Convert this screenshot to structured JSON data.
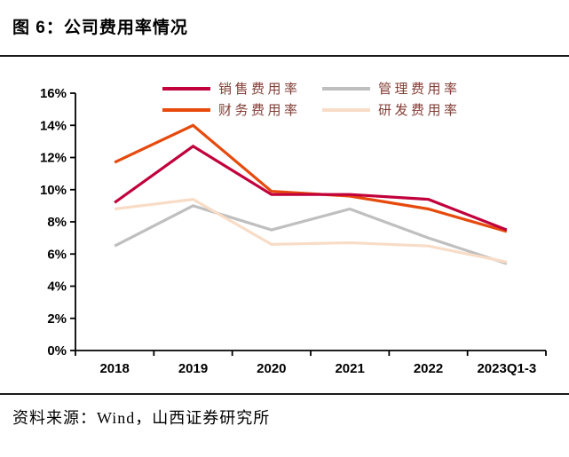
{
  "header": {
    "title": "图 6：公司费用率情况"
  },
  "footer": {
    "source": "资料来源：Wind，山西证券研究所"
  },
  "chart_data": {
    "type": "line",
    "title": "公司费用率情况",
    "categories": [
      "2018",
      "2019",
      "2020",
      "2021",
      "2022",
      "2023Q1-3"
    ],
    "series": [
      {
        "id": "sales-expense-ratio",
        "name": "销售费用率",
        "color": "#C1003C",
        "values": [
          9.2,
          12.7,
          9.7,
          9.7,
          9.4,
          7.5
        ]
      },
      {
        "id": "management-expense-ratio",
        "name": "管理费用率",
        "color": "#BFBFBF",
        "values": [
          6.5,
          9.0,
          7.5,
          8.8,
          7.0,
          5.4
        ]
      },
      {
        "id": "finance-expense-ratio",
        "name": "财务费用率",
        "color": "#E64A0D",
        "values": [
          11.7,
          14.0,
          9.9,
          9.6,
          8.8,
          7.4
        ]
      },
      {
        "id": "rnd-expense-ratio",
        "name": "研发费用率",
        "color": "#F8DCC6",
        "values": [
          8.8,
          9.4,
          6.6,
          6.7,
          6.5,
          5.5
        ]
      }
    ],
    "xlabel": "",
    "ylabel": "",
    "ylim": [
      0,
      16
    ],
    "ytick_step": 2,
    "ytick_format": "percent",
    "grid": false,
    "legend_position": "top",
    "accent_colors": {
      "legend_text": "#833D35",
      "axis": "#000000",
      "rule": "#1a1a1a"
    }
  }
}
